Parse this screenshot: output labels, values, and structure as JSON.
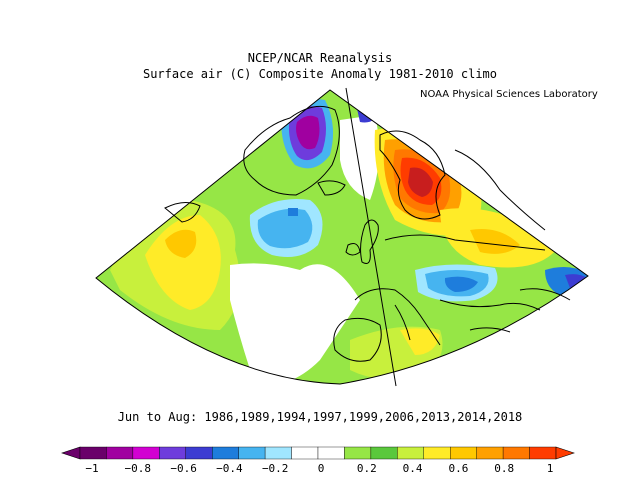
{
  "title": "NCEP/NCAR Reanalysis",
  "subtitle": "Surface air (C) Composite Anomaly 1981-2010 climo",
  "credit": "NOAA Physical Sciences Laboratory",
  "period": "Jun to Aug: 1986,1989,1994,1997,1999,2006,2013,2014,2018",
  "colorbar": {
    "ticks": [
      "−1",
      "−0.8",
      "−0.6",
      "−0.4",
      "−0.2",
      "0",
      "0.2",
      "0.4",
      "0.6",
      "0.8",
      "1"
    ],
    "colors": [
      "#6a006a",
      "#a000a0",
      "#d200d2",
      "#6e3cdc",
      "#3c3cd2",
      "#1e7ddc",
      "#46b4f0",
      "#a0e6ff",
      "#ffffff",
      "#ffffff",
      "#96e646",
      "#5ac83c",
      "#c8f03c",
      "#ffeb28",
      "#ffc800",
      "#ffa000",
      "#ff7800",
      "#ff3c00"
    ],
    "range": [
      -1,
      1
    ]
  },
  "map": {
    "projection": "conic",
    "region": "North Atlantic / Europe",
    "anomaly_colors": {
      "strong_warm": "#c81e1e",
      "warm": "#ff7800",
      "mild_warm": "#ffeb28",
      "slight_warm": "#96e646",
      "neutral": "#ffffff",
      "slight_cool": "#46b4f0",
      "cool": "#1e7ddc",
      "strong_cool": "#6e3cdc",
      "very_cool": "#a000a0"
    }
  }
}
